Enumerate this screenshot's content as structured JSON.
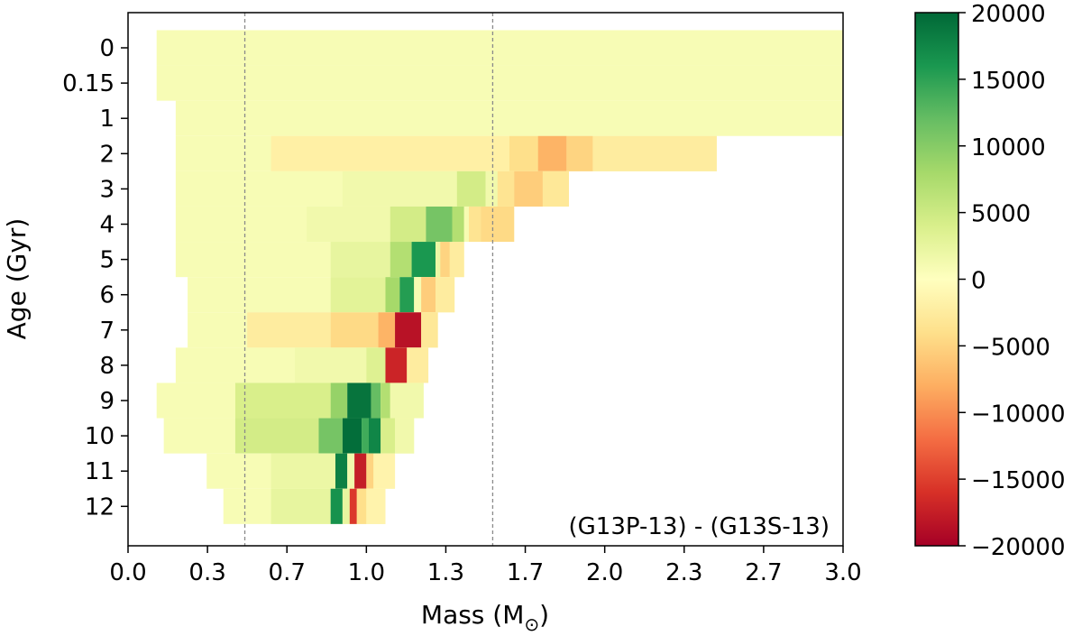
{
  "chart_data": {
    "type": "heatmap",
    "xlabel": "Mass (M",
    "xlabel_subscript": "⊙",
    "xlabel_close": ")",
    "ylabel": "Age (Gyr)",
    "annotation": "(G13P-13) - (G13S-13)",
    "xlim": [
      0.0,
      3.0
    ],
    "x_tick_labels": [
      "0.0",
      "0.3",
      "0.7",
      "1.0",
      "1.3",
      "1.7",
      "2.0",
      "2.3",
      "2.7",
      "3.0"
    ],
    "y_tick_labels": [
      "0",
      "0.15",
      "1",
      "2",
      "3",
      "4",
      "5",
      "6",
      "7",
      "8",
      "9",
      "10",
      "11",
      "12"
    ],
    "reference_lines_x": [
      0.49,
      1.53
    ],
    "colorbar": {
      "colormap": "RdYlGn",
      "range": [
        -20000,
        20000
      ],
      "tick_values": [
        20000,
        15000,
        10000,
        5000,
        0,
        -5000,
        -10000,
        -15000,
        -20000
      ],
      "tick_labels": [
        "20000",
        "15000",
        "10000",
        "5000",
        "0",
        "−5000",
        "−10000",
        "−15000",
        "−20000"
      ]
    },
    "rows": [
      {
        "age": "0",
        "mass_min": 0.12,
        "mass_max": 3.0,
        "features": []
      },
      {
        "age": "0.15",
        "mass_min": 0.12,
        "mass_max": 3.0,
        "features": []
      },
      {
        "age": "1",
        "mass_min": 0.2,
        "mass_max": 3.0,
        "features": []
      },
      {
        "age": "2",
        "mass_min": 0.2,
        "mass_max": 2.47,
        "features": [
          [
            0.6,
            1.6,
            -2000
          ],
          [
            1.6,
            1.72,
            -4000
          ],
          [
            1.72,
            1.84,
            -7500
          ],
          [
            1.84,
            1.95,
            -5000
          ],
          [
            1.95,
            2.47,
            -2500
          ]
        ]
      },
      {
        "age": "3",
        "mass_min": 0.2,
        "mass_max": 1.85,
        "features": [
          [
            0.9,
            1.38,
            1500
          ],
          [
            1.38,
            1.5,
            4500
          ],
          [
            1.5,
            1.55,
            1500
          ],
          [
            1.55,
            1.62,
            -3500
          ],
          [
            1.62,
            1.74,
            -5500
          ],
          [
            1.74,
            1.85,
            -3000
          ]
        ]
      },
      {
        "age": "4",
        "mass_min": 0.2,
        "mass_max": 1.62,
        "features": [
          [
            0.75,
            1.1,
            1500
          ],
          [
            1.1,
            1.25,
            4500
          ],
          [
            1.25,
            1.36,
            11000
          ],
          [
            1.36,
            1.41,
            7000
          ],
          [
            1.41,
            1.43,
            1000
          ],
          [
            1.43,
            1.48,
            -3500
          ],
          [
            1.48,
            1.62,
            -4500
          ]
        ]
      },
      {
        "age": "5",
        "mass_min": 0.2,
        "mass_max": 1.41,
        "features": [
          [
            0.85,
            1.1,
            2500
          ],
          [
            1.1,
            1.19,
            7000
          ],
          [
            1.19,
            1.29,
            16000
          ],
          [
            1.29,
            1.31,
            2000
          ],
          [
            1.31,
            1.35,
            -5000
          ],
          [
            1.35,
            1.41,
            -2500
          ]
        ]
      },
      {
        "age": "6",
        "mass_min": 0.25,
        "mass_max": 1.37,
        "features": [
          [
            0.85,
            1.08,
            3000
          ],
          [
            1.08,
            1.14,
            8000
          ],
          [
            1.14,
            1.2,
            15500
          ],
          [
            1.2,
            1.23,
            1000
          ],
          [
            1.23,
            1.29,
            -5500
          ],
          [
            1.29,
            1.37,
            -2500
          ]
        ]
      },
      {
        "age": "7",
        "mass_min": 0.25,
        "mass_max": 1.3,
        "features": [
          [
            0.5,
            0.85,
            -2500
          ],
          [
            0.85,
            1.05,
            -4500
          ],
          [
            1.05,
            1.12,
            -7500
          ],
          [
            1.12,
            1.23,
            -18500
          ],
          [
            1.23,
            1.3,
            -3000
          ]
        ]
      },
      {
        "age": "8",
        "mass_min": 0.2,
        "mass_max": 1.26,
        "features": [
          [
            0.7,
            1.0,
            1500
          ],
          [
            1.0,
            1.08,
            3500
          ],
          [
            1.08,
            1.17,
            -17000
          ],
          [
            1.17,
            1.26,
            -2500
          ]
        ]
      },
      {
        "age": "9",
        "mass_min": 0.12,
        "mass_max": 1.24,
        "features": [
          [
            0.45,
            0.85,
            4000
          ],
          [
            0.85,
            0.92,
            9000
          ],
          [
            0.92,
            1.02,
            19000
          ],
          [
            1.02,
            1.06,
            12000
          ],
          [
            1.06,
            1.1,
            7000
          ],
          [
            1.1,
            1.24,
            1500
          ]
        ]
      },
      {
        "age": "10",
        "mass_min": 0.15,
        "mass_max": 1.2,
        "features": [
          [
            0.45,
            0.8,
            4500
          ],
          [
            0.8,
            0.9,
            11000
          ],
          [
            0.9,
            0.98,
            19500
          ],
          [
            0.98,
            1.01,
            14000
          ],
          [
            1.01,
            1.06,
            17500
          ],
          [
            1.06,
            1.12,
            4000
          ],
          [
            1.12,
            1.2,
            1500
          ]
        ]
      },
      {
        "age": "11",
        "mass_min": 0.33,
        "mass_max": 1.12,
        "features": [
          [
            0.6,
            0.87,
            2000
          ],
          [
            0.87,
            0.92,
            18000
          ],
          [
            0.92,
            0.95,
            1500
          ],
          [
            0.95,
            1.0,
            -17500
          ],
          [
            1.0,
            1.03,
            -5000
          ],
          [
            1.03,
            1.12,
            -1500
          ]
        ]
      },
      {
        "age": "12",
        "mass_min": 0.4,
        "mass_max": 1.08,
        "features": [
          [
            0.6,
            0.85,
            2500
          ],
          [
            0.85,
            0.9,
            16500
          ],
          [
            0.9,
            0.93,
            2500
          ],
          [
            0.93,
            0.96,
            -15500
          ],
          [
            0.96,
            1.0,
            -4000
          ],
          [
            1.0,
            1.08,
            -1500
          ]
        ]
      }
    ]
  }
}
